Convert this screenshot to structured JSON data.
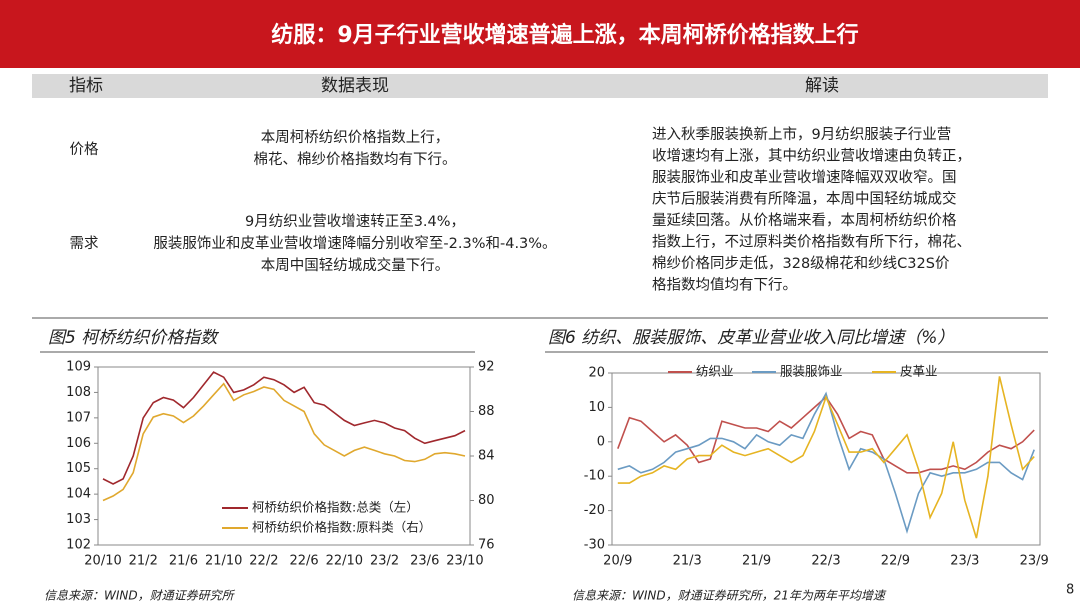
{
  "header": {
    "title": "纺服：9月子行业营收增速普遍上涨，本周柯桥价格指数上行"
  },
  "table": {
    "columns": [
      "指标",
      "数据表现",
      "解读"
    ],
    "rows": [
      {
        "indicator": "价格",
        "performance": [
          "本周柯桥纺织价格指数上行，",
          "棉花、棉纱价格指数均有下行。"
        ]
      },
      {
        "indicator": "需求",
        "performance": [
          "9月纺织业营收增速转正至3.4%，",
          "服装服饰业和皮革业营收增速降幅分别收窄至-2.3%和-4.3%。",
          "本周中国轻纺城成交量下行。"
        ]
      }
    ],
    "interpretation": [
      "进入秋季服装换新上市，9月纺织服装子行业营",
      "收增速均有上涨，其中纺织业营收增速由负转正，",
      "服装服饰业和皮革业营收增速降幅双双收窄。国",
      "庆节后服装消费有所降温，本周中国轻纺城成交",
      "量延续回落。从价格端来看，本周柯桥纺织价格",
      "指数上行，不过原料类价格指数有所下行，棉花、",
      "棉纱价格同步走低，328级棉花和纱线C32S价",
      "格指数均值均有下行。"
    ]
  },
  "chart_data": [
    {
      "type": "line",
      "title": "图5 柯桥纺织价格指数",
      "source": "信息来源：WIND，财通证券研究所",
      "categories": [
        "20/10",
        null,
        null,
        null,
        "21/2",
        null,
        null,
        null,
        "21/6",
        null,
        null,
        null,
        "21/10",
        null,
        null,
        null,
        "22/2",
        null,
        null,
        null,
        "22/6",
        null,
        null,
        null,
        "22/10",
        null,
        null,
        null,
        "23/2",
        null,
        null,
        null,
        "23/6",
        null,
        null,
        null,
        "23/10"
      ],
      "ylim": [
        102,
        109
      ],
      "yticks": [
        102,
        103,
        104,
        105,
        106,
        107,
        108,
        109
      ],
      "y2lim": [
        76,
        92
      ],
      "y2ticks": [
        76,
        80,
        84,
        88,
        92
      ],
      "legend": "lower right",
      "series": [
        {
          "name": "柯桥纺织价格指数:总类（左）",
          "color": "#a0282d",
          "values": [
            104.6,
            104.4,
            104.6,
            105.5,
            107.0,
            107.6,
            107.8,
            107.7,
            107.4,
            107.8,
            108.3,
            108.8,
            108.6,
            108.0,
            108.1,
            108.3,
            108.6,
            108.5,
            108.3,
            108.0,
            108.2,
            107.6,
            107.5,
            107.2,
            106.9,
            106.7,
            106.8,
            106.9,
            106.8,
            106.6,
            106.5,
            106.2,
            106.0,
            106.1,
            106.2,
            106.3,
            106.5
          ]
        },
        {
          "name": "柯桥纺织价格指数:原料类（右）",
          "color": "#e0a82e",
          "axis": "y2",
          "values": [
            80.0,
            80.4,
            81.0,
            82.5,
            86.0,
            87.5,
            87.8,
            87.6,
            87.0,
            87.6,
            88.5,
            89.5,
            90.5,
            89.0,
            89.5,
            89.8,
            90.2,
            90.0,
            89.0,
            88.5,
            88.0,
            86.0,
            85.0,
            84.5,
            84.0,
            84.5,
            84.8,
            84.5,
            84.2,
            84.0,
            83.6,
            83.5,
            83.7,
            84.2,
            84.3,
            84.2,
            84.0
          ]
        }
      ]
    },
    {
      "type": "line",
      "title": "图6 纺织、服装服饰、皮革业营业收入同比增速（%）",
      "source": "信息来源：WIND，财通证券研究所，21年为两年平均增速",
      "categories": [
        "20/9",
        null,
        null,
        null,
        null,
        null,
        "21/3",
        null,
        null,
        null,
        null,
        null,
        "21/9",
        null,
        null,
        null,
        null,
        null,
        "22/3",
        null,
        null,
        null,
        null,
        null,
        "22/9",
        null,
        null,
        null,
        null,
        null,
        "23/3",
        null,
        null,
        null,
        null,
        null,
        "23/9"
      ],
      "ylim": [
        -30,
        20
      ],
      "yticks": [
        -30,
        -20,
        -10,
        0,
        10,
        20
      ],
      "legend": "upper center",
      "series": [
        {
          "name": "纺织业",
          "color": "#c0504d",
          "values": [
            -2,
            7,
            6,
            3,
            0,
            2,
            -1,
            -6,
            -5,
            6,
            5,
            4,
            4,
            3,
            6,
            4,
            7,
            10,
            13,
            8,
            1,
            3,
            2,
            -5,
            -7,
            -9,
            -9,
            -8,
            -8,
            -7,
            -8,
            -6,
            -3,
            -1,
            -2,
            0,
            3.4
          ]
        },
        {
          "name": "服装服饰业",
          "color": "#6b9bc3",
          "values": [
            -8,
            -7,
            -9,
            -8,
            -6,
            -3,
            -2,
            -1,
            1,
            1,
            0,
            -2,
            2,
            0,
            -1,
            2,
            1,
            8,
            14,
            2,
            -8,
            -2,
            -3,
            -5,
            -15,
            -26,
            -15,
            -9,
            -10,
            -9,
            -9,
            -8,
            -6,
            -6,
            -9,
            -11,
            -2.3
          ]
        },
        {
          "name": "皮革业",
          "color": "#e6b422",
          "values": [
            -12,
            -12,
            -10,
            -9,
            -7,
            -8,
            -5,
            -4,
            -4,
            -1,
            -3,
            -4,
            -3,
            -2,
            -4,
            -6,
            -4,
            3,
            13,
            5,
            -3,
            -3,
            -2,
            -6,
            -2,
            2,
            -8,
            -22,
            -15,
            0,
            -17,
            -28,
            -10,
            19,
            5,
            -8,
            -4.3
          ]
        }
      ]
    }
  ],
  "page_number": 8
}
